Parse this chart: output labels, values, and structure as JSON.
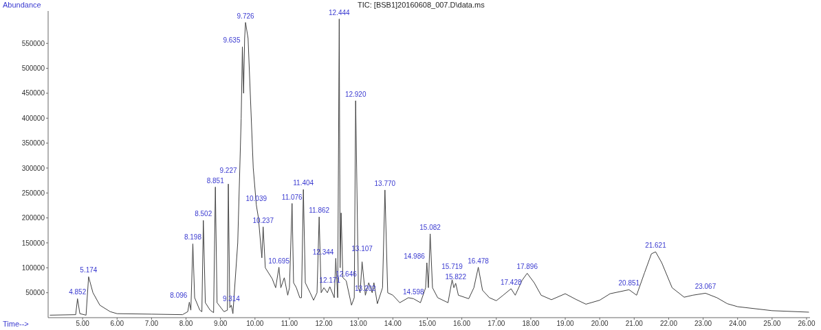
{
  "chart_data": {
    "type": "line",
    "title": "TIC: [BSB1]20160608_007.D\\data.ms",
    "xlabel": "Time-->",
    "ylabel": "Abundance",
    "xlim": [
      4.0,
      26.1
    ],
    "ylim": [
      0,
      615000
    ],
    "xticks": [
      {
        "value": 5,
        "label": "5.00"
      },
      {
        "value": 6,
        "label": "6.00"
      },
      {
        "value": 7,
        "label": "7.00"
      },
      {
        "value": 8,
        "label": "8.00"
      },
      {
        "value": 9,
        "label": "9.00"
      },
      {
        "value": 10,
        "label": "10.00"
      },
      {
        "value": 11,
        "label": "11.00"
      },
      {
        "value": 12,
        "label": "12.00"
      },
      {
        "value": 13,
        "label": "13.00"
      },
      {
        "value": 14,
        "label": "14.00"
      },
      {
        "value": 15,
        "label": "15.00"
      },
      {
        "value": 16,
        "label": "16.00"
      },
      {
        "value": 17,
        "label": "17.00"
      },
      {
        "value": 18,
        "label": "18.00"
      },
      {
        "value": 19,
        "label": "19.00"
      },
      {
        "value": 20,
        "label": "20.00"
      },
      {
        "value": 21,
        "label": "21.00"
      },
      {
        "value": 22,
        "label": "22.00"
      },
      {
        "value": 23,
        "label": "23.00"
      },
      {
        "value": 24,
        "label": "24.00"
      },
      {
        "value": 25,
        "label": "25.00"
      },
      {
        "value": 26,
        "label": "26.00"
      }
    ],
    "yticks": [
      50000,
      100000,
      150000,
      200000,
      250000,
      300000,
      350000,
      400000,
      450000,
      500000,
      550000
    ],
    "x": [
      4.05,
      4.8,
      4.852,
      4.92,
      5.1,
      5.174,
      5.3,
      5.5,
      5.8,
      6.0,
      7.0,
      7.9,
      8.05,
      8.096,
      8.14,
      8.198,
      8.25,
      8.4,
      8.46,
      8.502,
      8.56,
      8.7,
      8.8,
      8.851,
      8.9,
      9.1,
      9.2,
      9.227,
      9.27,
      9.314,
      9.36,
      9.5,
      9.6,
      9.635,
      9.67,
      9.7,
      9.726,
      9.8,
      9.95,
      10.039,
      10.1,
      10.2,
      10.237,
      10.3,
      10.5,
      10.6,
      10.695,
      10.75,
      10.85,
      10.95,
      11.0,
      11.076,
      11.12,
      11.2,
      11.3,
      11.35,
      11.404,
      11.46,
      11.6,
      11.7,
      11.8,
      11.862,
      11.92,
      12.0,
      12.1,
      12.171,
      12.3,
      12.344,
      12.4,
      12.444,
      12.47,
      12.5,
      12.55,
      12.646,
      12.8,
      12.88,
      12.92,
      13.0,
      13.05,
      13.107,
      13.202,
      13.3,
      13.4,
      13.45,
      13.55,
      13.7,
      13.77,
      13.85,
      14.0,
      14.2,
      14.45,
      14.598,
      14.8,
      14.95,
      14.986,
      15.03,
      15.082,
      15.15,
      15.3,
      15.6,
      15.719,
      15.77,
      15.822,
      15.9,
      16.2,
      16.35,
      16.478,
      16.6,
      16.8,
      17.0,
      17.2,
      17.428,
      17.55,
      17.75,
      17.896,
      18.1,
      18.3,
      18.6,
      19.0,
      19.3,
      19.6,
      20.0,
      20.3,
      20.851,
      21.07,
      21.3,
      21.5,
      21.621,
      21.8,
      22.1,
      22.45,
      22.7,
      23.067,
      23.4,
      23.7,
      24.0,
      25.0,
      26.07
    ],
    "series": [
      {
        "color": "#404040",
        "values": [
          5000,
          6000,
          38000,
          8000,
          5000,
          82000,
          50000,
          25000,
          12000,
          8000,
          7000,
          6000,
          12000,
          31000,
          15000,
          148000,
          40000,
          15000,
          12000,
          195000,
          30000,
          15000,
          10000,
          262000,
          30000,
          12000,
          15000,
          268000,
          20000,
          25000,
          8000,
          150000,
          400000,
          543000,
          450000,
          560000,
          592000,
          560000,
          300000,
          226000,
          200000,
          120000,
          182000,
          100000,
          78000,
          60000,
          101000,
          60000,
          80000,
          45000,
          60000,
          229000,
          70000,
          60000,
          40000,
          40000,
          257000,
          70000,
          50000,
          35000,
          50000,
          202000,
          50000,
          60000,
          50000,
          62000,
          40000,
          119000,
          40000,
          599000,
          100000,
          210000,
          80000,
          74000,
          25000,
          40000,
          435000,
          60000,
          50000,
          112000,
          45000,
          70000,
          50000,
          70000,
          28000,
          60000,
          256000,
          50000,
          45000,
          30000,
          40000,
          38000,
          30000,
          60000,
          110000,
          60000,
          168000,
          60000,
          40000,
          30000,
          76000,
          60000,
          69000,
          45000,
          38000,
          60000,
          101000,
          55000,
          40000,
          34000,
          45000,
          58000,
          45000,
          75000,
          89000,
          70000,
          45000,
          36000,
          48000,
          37000,
          27000,
          35000,
          48000,
          56000,
          45000,
          90000,
          128000,
          132000,
          110000,
          60000,
          41000,
          45000,
          49000,
          40000,
          28000,
          22000,
          14000,
          11000
        ]
      }
    ],
    "annotations": [
      {
        "text": "4.852",
        "x": 4.852,
        "y": 38000
      },
      {
        "text": "5.174",
        "x": 5.174,
        "y": 82000
      },
      {
        "text": "8.096",
        "x": 8.096,
        "y": 31000
      },
      {
        "text": "8.198",
        "x": 8.198,
        "y": 148000
      },
      {
        "text": "8.502",
        "x": 8.502,
        "y": 195000
      },
      {
        "text": "8.851",
        "x": 8.851,
        "y": 262000
      },
      {
        "text": "9.227",
        "x": 9.227,
        "y": 268000
      },
      {
        "text": "9.314",
        "x": 9.314,
        "y": 25000
      },
      {
        "text": "9.635",
        "x": 9.635,
        "y": 543000
      },
      {
        "text": "9.726",
        "x": 9.726,
        "y": 592000
      },
      {
        "text": "10.039",
        "x": 10.039,
        "y": 226000
      },
      {
        "text": "10.237",
        "x": 10.237,
        "y": 182000
      },
      {
        "text": "10.695",
        "x": 10.695,
        "y": 101000
      },
      {
        "text": "11.076",
        "x": 11.076,
        "y": 229000
      },
      {
        "text": "11.404",
        "x": 11.404,
        "y": 257000
      },
      {
        "text": "11.862",
        "x": 11.862,
        "y": 202000
      },
      {
        "text": "12.171",
        "x": 12.171,
        "y": 62000
      },
      {
        "text": "12.344",
        "x": 12.344,
        "y": 119000
      },
      {
        "text": "12.444",
        "x": 12.444,
        "y": 599000
      },
      {
        "text": "12.646",
        "x": 12.646,
        "y": 74000
      },
      {
        "text": "12.920",
        "x": 12.92,
        "y": 435000
      },
      {
        "text": "13.107",
        "x": 13.107,
        "y": 112000
      },
      {
        "text": "13.202",
        "x": 13.202,
        "y": 45000
      },
      {
        "text": "13.770",
        "x": 13.77,
        "y": 256000
      },
      {
        "text": "14.598",
        "x": 14.598,
        "y": 38000
      },
      {
        "text": "14.986",
        "x": 14.986,
        "y": 110000
      },
      {
        "text": "15.082",
        "x": 15.082,
        "y": 168000
      },
      {
        "text": "15.719",
        "x": 15.719,
        "y": 76000
      },
      {
        "text": "15.822",
        "x": 15.822,
        "y": 69000
      },
      {
        "text": "16.478",
        "x": 16.478,
        "y": 101000
      },
      {
        "text": "17.428",
        "x": 17.428,
        "y": 58000
      },
      {
        "text": "17.896",
        "x": 17.896,
        "y": 89000
      },
      {
        "text": "20.851",
        "x": 20.851,
        "y": 56000
      },
      {
        "text": "21.621",
        "x": 21.621,
        "y": 132000
      },
      {
        "text": "23.067",
        "x": 23.067,
        "y": 49000
      }
    ]
  }
}
